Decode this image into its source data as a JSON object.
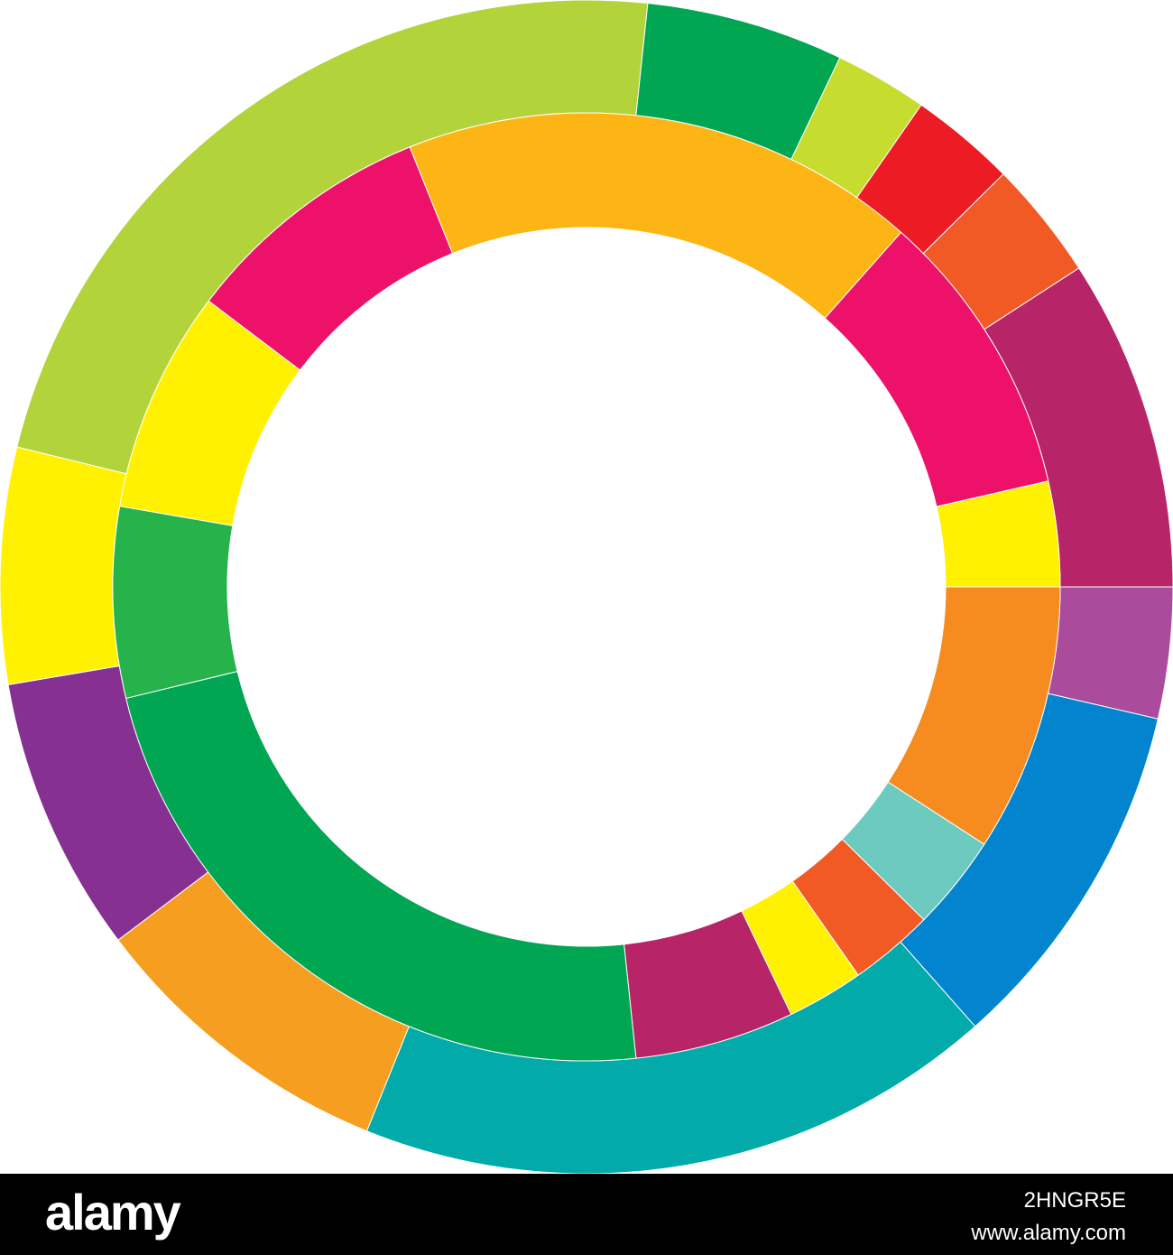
{
  "chart_data": {
    "type": "donut",
    "series": [
      {
        "values": [
          13,
          35.5,
          63.5,
          31,
          27.4,
          23.4,
          82.2,
          19.6,
          9.2,
          10.5,
          11.8,
          32.9
        ],
        "colors": [
          "#ab4b9b",
          "#0284cf",
          "#02aaaa",
          "#f59e1f",
          "#863092",
          "#fff100",
          "#b3d33a",
          "#00a652",
          "#c6dc2f",
          "#ed1c24",
          "#f15a25",
          "#b72467"
        ]
      },
      {
        "values": [
          32.9,
          11.7,
          10.4,
          9.4,
          19.6,
          82.4,
          23.4,
          27.3,
          31,
          63.5,
          35.5,
          12.9
        ],
        "colors": [
          "#f68b1f",
          "#6ccabf",
          "#f15a25",
          "#fff100",
          "#b72467",
          "#00a652",
          "#27b34b",
          "#fff100",
          "#ed116a",
          "#fdb515",
          "#ed116a",
          "#fff100"
        ]
      }
    ]
  },
  "banner": {
    "logo": "alamy",
    "image_id": "2HNGR5E",
    "url": "www.alamy.com"
  }
}
